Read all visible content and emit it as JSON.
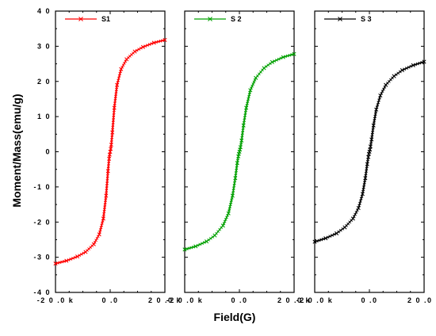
{
  "chart_data": {
    "type": "line",
    "xlabel": "Field(G)",
    "ylabel": "Moment/Mass(emu/g)",
    "xlim": [
      -20000,
      20000
    ],
    "ylim": [
      -40,
      40
    ],
    "y_ticks": [
      -40,
      -30,
      -20,
      -10,
      0,
      10,
      20,
      30,
      40
    ],
    "y_tick_labels": [
      "-4 0",
      "-3 0",
      "-2 0",
      "-1 0",
      "0",
      "1 0",
      "2 0",
      "3 0",
      "4 0"
    ],
    "x_tick_labels": [
      [
        "-2 0 .0 k",
        "0 .0",
        "2 0 .0 k"
      ],
      [
        "-2 0 .0 k",
        "0 .0",
        "2 0 .0 k"
      ],
      [
        "-2 0 .0 k",
        "0 .0",
        "2 0 .0 k"
      ]
    ],
    "x_ticks": [
      -20000,
      0,
      20000
    ],
    "grid": false,
    "legend_position": "top-left",
    "panels": [
      {
        "name": "S1",
        "color": "#ff0000",
        "marker": "x",
        "x": [
          -20000,
          -16000,
          -12000,
          -9000,
          -6000,
          -4000,
          -2500,
          -1500,
          -800,
          -400,
          -200,
          0,
          200,
          400,
          800,
          1500,
          2500,
          4000,
          6000,
          9000,
          12000,
          16000,
          20000
        ],
        "y": [
          -31.8,
          -31.0,
          -29.8,
          -28.5,
          -26.3,
          -23.5,
          -19.0,
          -12.5,
          -5.5,
          -2.0,
          -0.8,
          0,
          0.8,
          2.0,
          5.5,
          12.5,
          19.0,
          23.5,
          26.3,
          28.5,
          29.8,
          31.0,
          31.8
        ]
      },
      {
        "name": "S 2",
        "color": "#00a000",
        "marker": "x",
        "x": [
          -20000,
          -16000,
          -12000,
          -9000,
          -6000,
          -4000,
          -2500,
          -1500,
          -800,
          -400,
          -200,
          0,
          200,
          400,
          800,
          1500,
          2500,
          4000,
          6000,
          9000,
          12000,
          16000,
          20000
        ],
        "y": [
          -27.8,
          -26.9,
          -25.5,
          -23.8,
          -21.0,
          -17.5,
          -12.5,
          -7.5,
          -3.2,
          -1.3,
          -0.6,
          0,
          0.6,
          1.3,
          3.2,
          7.5,
          12.5,
          17.5,
          21.0,
          23.8,
          25.5,
          26.9,
          27.8
        ]
      },
      {
        "name": "S 3",
        "color": "#000000",
        "marker": "x",
        "x": [
          -20000,
          -16000,
          -12000,
          -9000,
          -6000,
          -4000,
          -2500,
          -1500,
          -800,
          -400,
          -200,
          0,
          200,
          400,
          800,
          1500,
          2500,
          4000,
          6000,
          9000,
          12000,
          16000,
          20000
        ],
        "y": [
          -25.6,
          -24.6,
          -23.2,
          -21.5,
          -19.0,
          -16.0,
          -12.0,
          -7.5,
          -3.5,
          -1.5,
          -0.6,
          0,
          0.6,
          1.5,
          3.5,
          7.5,
          12.0,
          16.0,
          19.0,
          21.5,
          23.2,
          24.6,
          25.6
        ]
      }
    ]
  }
}
